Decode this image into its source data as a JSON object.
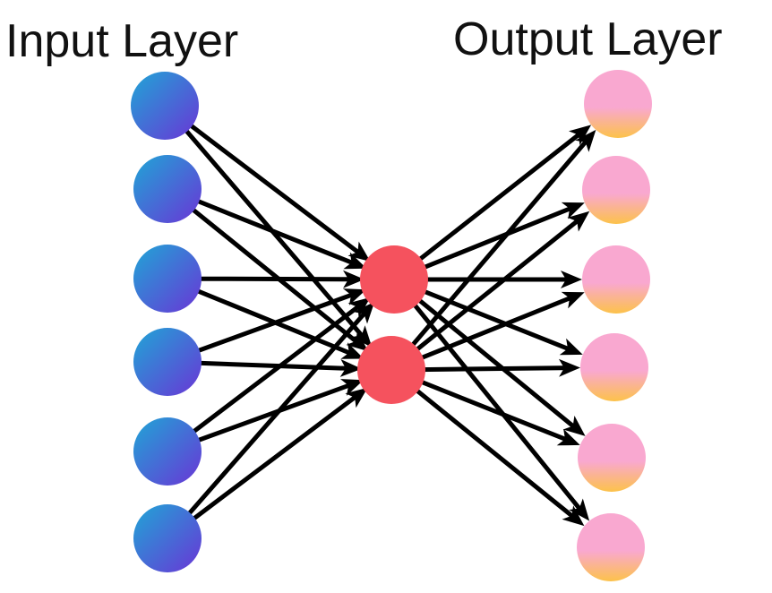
{
  "titles": {
    "input": "Input Layer",
    "output": "Output Layer"
  },
  "colors": {
    "input_top": "#1fa6d6",
    "input_bottom": "#6a35d6",
    "hidden": "#f5525e",
    "output_top": "#f9a8d0",
    "output_bottom": "#fcc24a",
    "edge": "#000000"
  },
  "layers": {
    "input_count": 6,
    "hidden_count": 2,
    "output_count": 6
  }
}
